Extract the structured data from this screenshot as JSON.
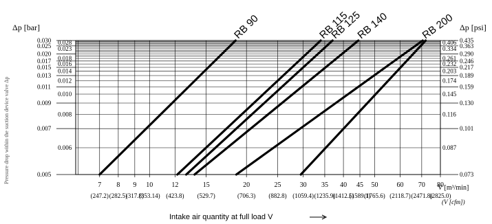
{
  "chart_data": {
    "type": "line",
    "title": "",
    "xlabel": "Intake air quantity at full load V",
    "ylabel_left": "Δp [bar]",
    "ylabel_right": "Δp [psi]",
    "ylabel_rotated": "Pressure drop within the suction device valve  Δp",
    "x_unit_primary": "V [m³/min]",
    "x_unit_secondary": "(V [cfm])",
    "x_scale": "log",
    "y_scale": "reciprocal",
    "xlim": [
      5.9,
      80
    ],
    "ylim": [
      0.005,
      0.03
    ],
    "grid": true,
    "legend": "labels at line ends",
    "x_ticks": [
      {
        "value": 7,
        "label": "7",
        "sub": "(247.2)"
      },
      {
        "value": 8,
        "label": "8",
        "sub": "(282.5)"
      },
      {
        "value": 9,
        "label": "9",
        "sub": "(317.8)"
      },
      {
        "value": 10,
        "label": "10",
        "sub": "(353.14)"
      },
      {
        "value": 12,
        "label": "12",
        "sub": "(423.8)"
      },
      {
        "value": 15,
        "label": "15",
        "sub": "(529.7)"
      },
      {
        "value": 20,
        "label": "20",
        "sub": "(706.3)"
      },
      {
        "value": 25,
        "label": "25",
        "sub": "(882.8)"
      },
      {
        "value": 30,
        "label": "30",
        "sub": "(1059.4)"
      },
      {
        "value": 35,
        "label": "35",
        "sub": "(1235.9)"
      },
      {
        "value": 40,
        "label": "40",
        "sub": "(1412.5)"
      },
      {
        "value": 45,
        "label": "45",
        "sub": "(1589.1)"
      },
      {
        "value": 50,
        "label": "50",
        "sub": "(1765.6)"
      },
      {
        "value": 60,
        "label": "60",
        "sub": "(2118.7)"
      },
      {
        "value": 70,
        "label": "70",
        "sub": "(2471.8)"
      },
      {
        "value": 80,
        "label": "80",
        "sub": "(2825.0)"
      }
    ],
    "y_ticks_left_outer": [
      "0.030",
      "0.025",
      "0.020",
      "0.017",
      "0.015",
      "0.013",
      "0.011",
      "0.009",
      "0.007",
      "0.005"
    ],
    "y_ticks_left_inner": [
      "0.028",
      "0.023",
      "0.018",
      "0.016",
      "0.014",
      "0.012",
      "0.010",
      "0.008",
      "0.006"
    ],
    "y_ticks_right_outer": [
      "0.435",
      "0.363",
      "0.290",
      "0.246",
      "0.217",
      "0.189",
      "0.159",
      "0.130",
      "0.101",
      "0.073"
    ],
    "y_ticks_right_inner": [
      "0.406",
      "0.334",
      "0.261",
      "0.232",
      "0.203",
      "0.174",
      "0.145",
      "0.116",
      "0.087"
    ],
    "series": [
      {
        "name": "RB 90",
        "x": [
          7.0,
          18.5
        ],
        "y": [
          0.005,
          0.03
        ]
      },
      {
        "name": "RB 115",
        "x": [
          12.2,
          34.0
        ],
        "y": [
          0.005,
          0.03
        ]
      },
      {
        "name": "RB 125",
        "x": [
          13.0,
          37.0
        ],
        "y": [
          0.005,
          0.03
        ]
      },
      {
        "name": "RB 140",
        "x": [
          13.8,
          44.5
        ],
        "y": [
          0.005,
          0.03
        ]
      },
      {
        "name": "RB 200",
        "x": [
          18.6,
          70.5
        ],
        "y": [
          0.005,
          0.03
        ]
      }
    ],
    "extra_line": {
      "x": [
        29.5,
        72.0
      ],
      "y": [
        0.005,
        0.03
      ]
    }
  }
}
